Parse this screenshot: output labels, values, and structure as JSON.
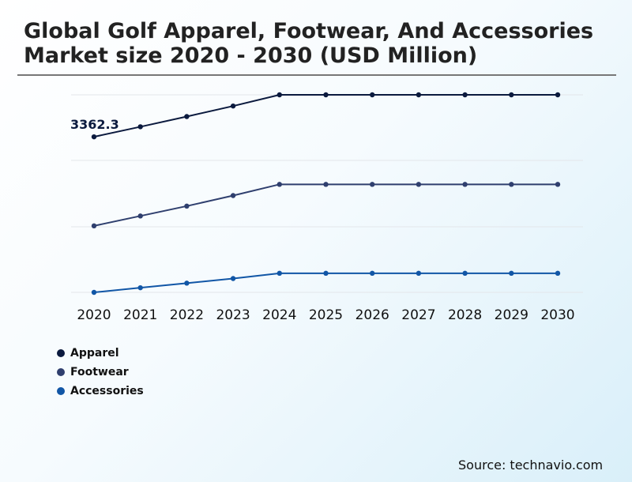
{
  "chart_data": {
    "type": "line",
    "title": "Global Golf Apparel, Footwear, And Accessories Market size 2020 - 2030 (USD Million)",
    "x": [
      "2020",
      "2021",
      "2022",
      "2023",
      "2024",
      "2025",
      "2026",
      "2027",
      "2028",
      "2029",
      "2030"
    ],
    "series": [
      {
        "name": "Apparel",
        "color": "#0b1a3e",
        "values": [
          3362.3,
          3515,
          3670,
          3830,
          4000,
          4000,
          4000,
          4000,
          4000,
          4000,
          4000
        ]
      },
      {
        "name": "Footwear",
        "color": "#2f3f6e",
        "values": [
          2010,
          2160,
          2310,
          2470,
          2640,
          2640,
          2640,
          2640,
          2640,
          2640,
          2640
        ]
      },
      {
        "name": "Accessories",
        "color": "#1156a6",
        "values": [
          1000,
          1070,
          1140,
          1210,
          1290,
          1290,
          1290,
          1290,
          1290,
          1290,
          1290
        ]
      }
    ],
    "annotations": [
      {
        "series": "Apparel",
        "x": "2020",
        "text": "3362.3"
      }
    ],
    "grid": true,
    "legend_position": "bottom-left"
  },
  "source": "Source: technavio.com"
}
